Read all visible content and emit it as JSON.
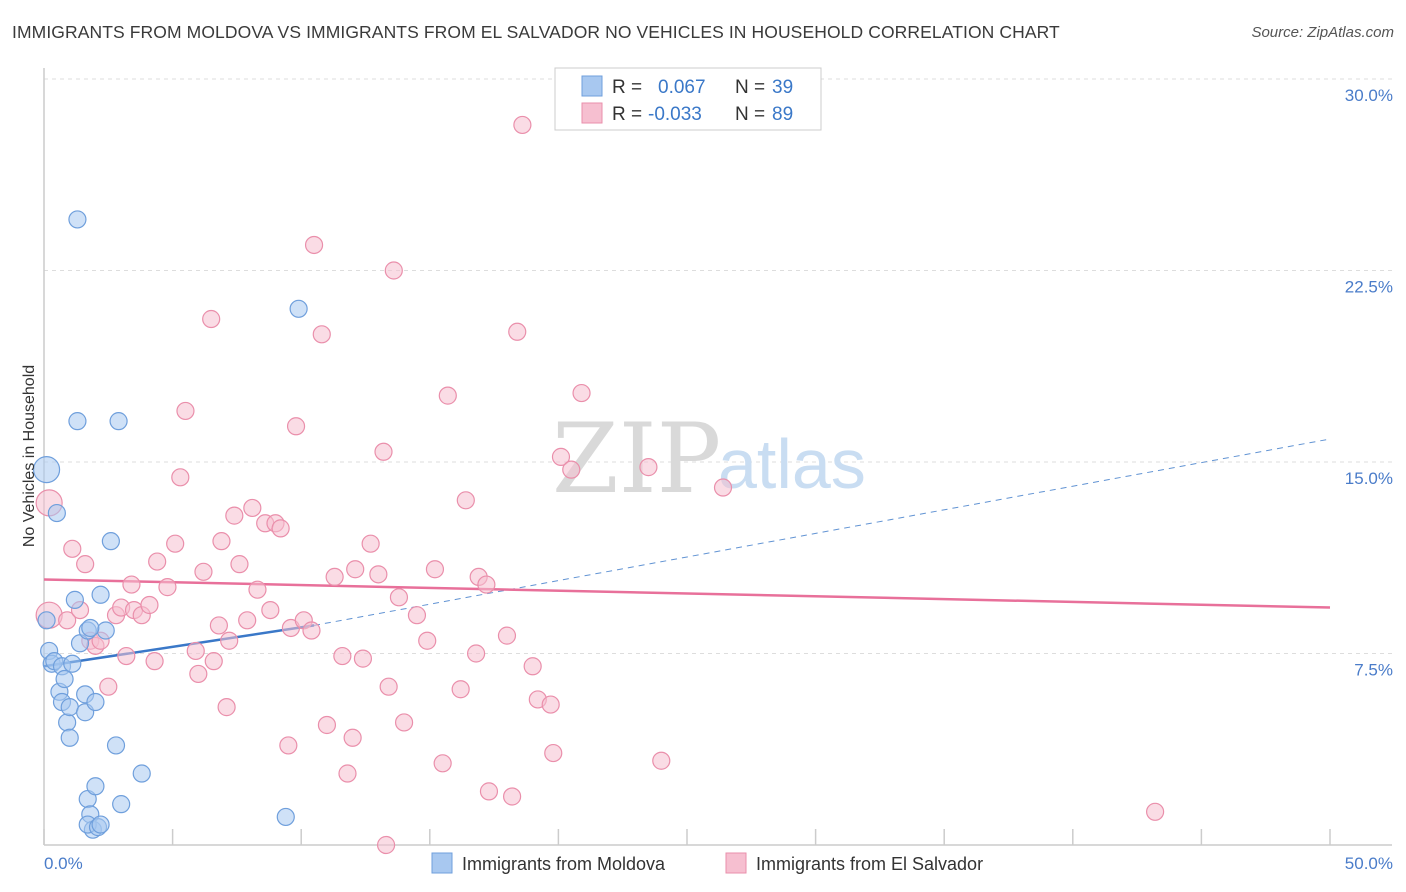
{
  "title": "IMMIGRANTS FROM MOLDOVA VS IMMIGRANTS FROM EL SALVADOR NO VEHICLES IN HOUSEHOLD CORRELATION CHART",
  "source": "Source: ZipAtlas.com",
  "watermark": {
    "zip": "ZIP",
    "atlas": "atlas"
  },
  "legend": {
    "r_label": "R =",
    "n_label": "N =",
    "series1": {
      "r": "0.067",
      "n": "39"
    },
    "series2": {
      "r": "-0.033",
      "n": "89"
    }
  },
  "colors": {
    "moldova_fill": "#a8c8f0",
    "moldova_stroke": "#6f9fdc",
    "moldova_line": "#3a78c8",
    "salvador_fill": "#f6bfd0",
    "salvador_stroke": "#ea8fab",
    "salvador_line": "#e8709a",
    "axis_text": "#4a7cc9",
    "grid": "#dddddd"
  },
  "chart_data": {
    "type": "scatter",
    "title": "IMMIGRANTS FROM MOLDOVA VS IMMIGRANTS FROM EL SALVADOR NO VEHICLES IN HOUSEHOLD CORRELATION CHART",
    "xlabel": "",
    "ylabel": "No Vehicles in Household",
    "xlim": [
      0,
      50
    ],
    "ylim": [
      0,
      30
    ],
    "x_tick_labels": [
      "0.0%",
      "50.0%"
    ],
    "y_ticks": [
      7.5,
      15.0,
      22.5,
      30.0
    ],
    "y_tick_labels": [
      "7.5%",
      "15.0%",
      "22.5%",
      "30.0%"
    ],
    "grid": true,
    "series": [
      {
        "name": "Immigrants from Moldova",
        "r": 0.067,
        "n": 39,
        "trend": {
          "x0": 0,
          "y0": 7.0,
          "x1": 10.5,
          "y1": 8.6,
          "dashed_to_x": 50,
          "dashed_to_y": 15.9
        },
        "points": [
          [
            0.1,
            14.7,
            "L"
          ],
          [
            0.1,
            8.8
          ],
          [
            0.2,
            7.6
          ],
          [
            0.3,
            7.1
          ],
          [
            0.4,
            7.2
          ],
          [
            0.5,
            13.0
          ],
          [
            0.6,
            6.0
          ],
          [
            0.7,
            5.6
          ],
          [
            0.7,
            7.0
          ],
          [
            0.8,
            6.5
          ],
          [
            0.9,
            4.8
          ],
          [
            1.0,
            4.2
          ],
          [
            1.0,
            5.4
          ],
          [
            1.2,
            9.6
          ],
          [
            1.3,
            24.5
          ],
          [
            1.4,
            7.9
          ],
          [
            1.6,
            5.2
          ],
          [
            1.6,
            5.9
          ],
          [
            1.7,
            8.4
          ],
          [
            1.7,
            1.8
          ],
          [
            1.8,
            1.2
          ],
          [
            1.9,
            0.6
          ],
          [
            2.0,
            2.3
          ],
          [
            2.0,
            5.6
          ],
          [
            1.7,
            0.8
          ],
          [
            2.1,
            0.7
          ],
          [
            2.2,
            0.8
          ],
          [
            2.2,
            9.8
          ],
          [
            2.4,
            8.4
          ],
          [
            2.6,
            11.9
          ],
          [
            2.8,
            3.9
          ],
          [
            2.9,
            16.6
          ],
          [
            3.0,
            1.6
          ],
          [
            3.8,
            2.8
          ],
          [
            1.8,
            8.5
          ],
          [
            1.3,
            16.6
          ],
          [
            1.1,
            7.1
          ],
          [
            9.4,
            1.1
          ],
          [
            9.9,
            21.0
          ]
        ]
      },
      {
        "name": "Immigrants from El Salvador",
        "r": -0.033,
        "n": 89,
        "trend": {
          "x0": 0,
          "y0": 10.4,
          "x1": 50,
          "y1": 9.3
        },
        "points": [
          [
            0.2,
            13.4,
            "L"
          ],
          [
            0.2,
            9.0,
            "L"
          ],
          [
            0.9,
            8.8
          ],
          [
            1.1,
            11.6
          ],
          [
            1.4,
            9.2
          ],
          [
            1.6,
            11.0
          ],
          [
            1.8,
            8.0
          ],
          [
            2.0,
            7.8
          ],
          [
            2.2,
            8.0
          ],
          [
            2.5,
            6.2
          ],
          [
            2.8,
            9.0
          ],
          [
            3.0,
            9.3
          ],
          [
            3.2,
            7.4
          ],
          [
            3.4,
            10.2
          ],
          [
            3.5,
            9.2
          ],
          [
            3.8,
            9.0
          ],
          [
            4.1,
            9.4
          ],
          [
            4.3,
            7.2
          ],
          [
            4.4,
            11.1
          ],
          [
            4.8,
            10.1
          ],
          [
            5.1,
            11.8
          ],
          [
            5.3,
            14.4
          ],
          [
            5.5,
            17.0
          ],
          [
            5.9,
            7.6
          ],
          [
            6.0,
            6.7
          ],
          [
            6.2,
            10.7
          ],
          [
            6.5,
            20.6
          ],
          [
            6.6,
            7.2
          ],
          [
            6.8,
            8.6
          ],
          [
            6.9,
            11.9
          ],
          [
            7.1,
            5.4
          ],
          [
            7.2,
            8.0
          ],
          [
            7.4,
            12.9
          ],
          [
            7.6,
            11.0
          ],
          [
            7.9,
            8.8
          ],
          [
            8.1,
            13.2
          ],
          [
            8.3,
            10.0
          ],
          [
            8.6,
            12.6
          ],
          [
            8.8,
            9.2
          ],
          [
            9.0,
            12.6
          ],
          [
            9.2,
            12.4
          ],
          [
            9.5,
            3.9
          ],
          [
            9.6,
            8.5
          ],
          [
            9.8,
            16.4
          ],
          [
            10.1,
            8.8
          ],
          [
            10.4,
            8.4
          ],
          [
            10.5,
            23.5
          ],
          [
            10.8,
            20.0
          ],
          [
            11.0,
            4.7
          ],
          [
            11.3,
            10.5
          ],
          [
            11.6,
            7.4
          ],
          [
            11.8,
            2.8
          ],
          [
            12.0,
            4.2
          ],
          [
            12.1,
            10.8
          ],
          [
            12.4,
            7.3
          ],
          [
            12.7,
            11.8
          ],
          [
            13.0,
            10.6
          ],
          [
            13.2,
            15.4
          ],
          [
            13.4,
            6.2
          ],
          [
            13.6,
            22.5
          ],
          [
            13.8,
            9.7
          ],
          [
            14.0,
            4.8
          ],
          [
            14.5,
            9.0
          ],
          [
            14.9,
            8.0
          ],
          [
            15.2,
            10.8
          ],
          [
            15.5,
            3.2
          ],
          [
            15.7,
            17.6
          ],
          [
            16.2,
            6.1
          ],
          [
            16.4,
            13.5
          ],
          [
            16.8,
            7.5
          ],
          [
            16.9,
            10.5
          ],
          [
            17.3,
            2.1
          ],
          [
            18.0,
            8.2
          ],
          [
            18.2,
            1.9
          ],
          [
            18.4,
            20.1
          ],
          [
            18.6,
            28.2
          ],
          [
            19.0,
            7.0
          ],
          [
            19.2,
            5.7
          ],
          [
            19.7,
            5.5
          ],
          [
            19.8,
            3.6
          ],
          [
            20.1,
            15.2
          ],
          [
            20.5,
            14.7
          ],
          [
            20.9,
            17.7
          ],
          [
            23.5,
            14.8
          ],
          [
            24.0,
            3.3
          ],
          [
            26.4,
            14.0
          ],
          [
            43.2,
            1.3
          ],
          [
            13.3,
            0.0
          ],
          [
            17.2,
            10.2
          ]
        ]
      }
    ]
  },
  "bottom_legend": {
    "series1_label": "Immigrants from Moldova",
    "series2_label": "Immigrants from El Salvador"
  }
}
